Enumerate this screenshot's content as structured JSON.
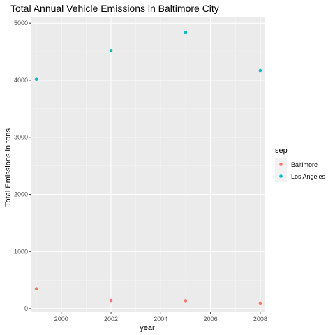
{
  "chart_data": {
    "type": "scatter",
    "title": "Total Annual Vehicle Emissions in Baltimore City",
    "xlabel": "year",
    "ylabel": "Total Emissions in tons",
    "xlim": [
      1998.8,
      2008.2
    ],
    "ylim": [
      -60,
      5100
    ],
    "x_ticks": [
      2000,
      2002,
      2004,
      2006,
      2008
    ],
    "y_ticks": [
      0,
      1000,
      2000,
      3000,
      4000,
      5000
    ],
    "grid": true,
    "legend_position": "right",
    "legend_title": "sep",
    "series": [
      {
        "name": "Baltimore",
        "color": "#F8766D",
        "points": [
          {
            "x": 1999,
            "y": 347
          },
          {
            "x": 2002,
            "y": 134
          },
          {
            "x": 2005,
            "y": 131
          },
          {
            "x": 2008,
            "y": 88
          }
        ]
      },
      {
        "name": "Los Angeles",
        "color": "#00BFC4",
        "points": [
          {
            "x": 1999,
            "y": 4015
          },
          {
            "x": 2002,
            "y": 4520
          },
          {
            "x": 2005,
            "y": 4840
          },
          {
            "x": 2008,
            "y": 4170
          }
        ]
      }
    ]
  },
  "colors": {
    "panel_background": "#EBEBEB",
    "grid_major": "#FFFFFF",
    "grid_minor": "#F4F4F4"
  }
}
